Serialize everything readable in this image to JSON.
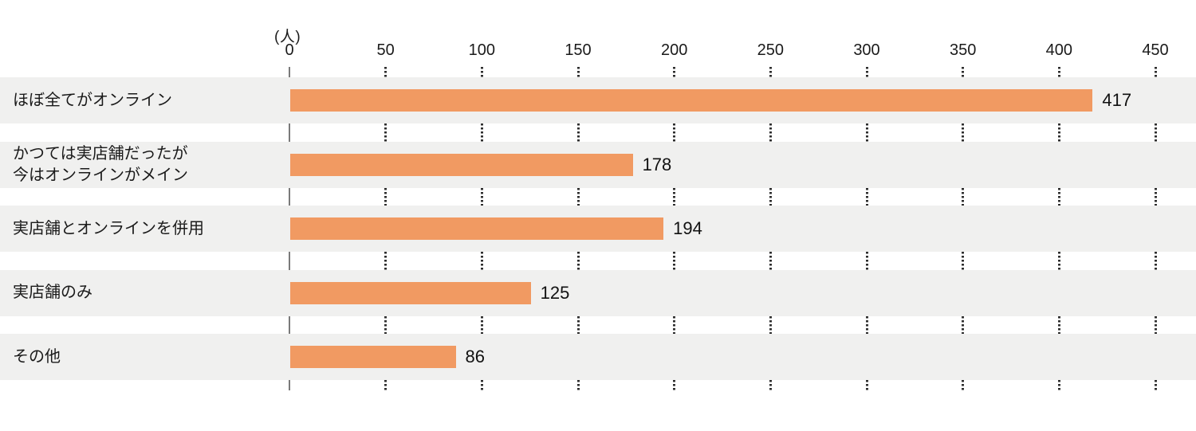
{
  "chart_data": {
    "type": "bar",
    "orientation": "horizontal",
    "unit_label": "(人)",
    "categories": [
      "ほぼ全てがオンライン",
      "かつては実店舗だったが\n今はオンラインがメイン",
      "実店舗とオンラインを併用",
      "実店舗のみ",
      "その他"
    ],
    "values": [
      417,
      178,
      194,
      125,
      86
    ],
    "value_labels": [
      "417",
      "178",
      "194",
      "125",
      "86"
    ],
    "x_ticks": [
      0,
      50,
      100,
      150,
      200,
      250,
      300,
      350,
      400,
      450
    ],
    "x_tick_labels": [
      "0",
      "50",
      "100",
      "150",
      "200",
      "250",
      "300",
      "350",
      "400",
      "450"
    ],
    "xlim": [
      0,
      450
    ],
    "title": "",
    "xlabel": "",
    "ylabel": "",
    "legend": null,
    "grid": "dotted-vertical-tick-stubs-between-row-bands",
    "colors": {
      "bar": "#f19a62",
      "row_band": "#f0f0ef",
      "axis_line": "#7a7a7a",
      "tick_dots": "#2e2e2e",
      "text": "#1a1a1a",
      "background": "#ffffff"
    }
  }
}
